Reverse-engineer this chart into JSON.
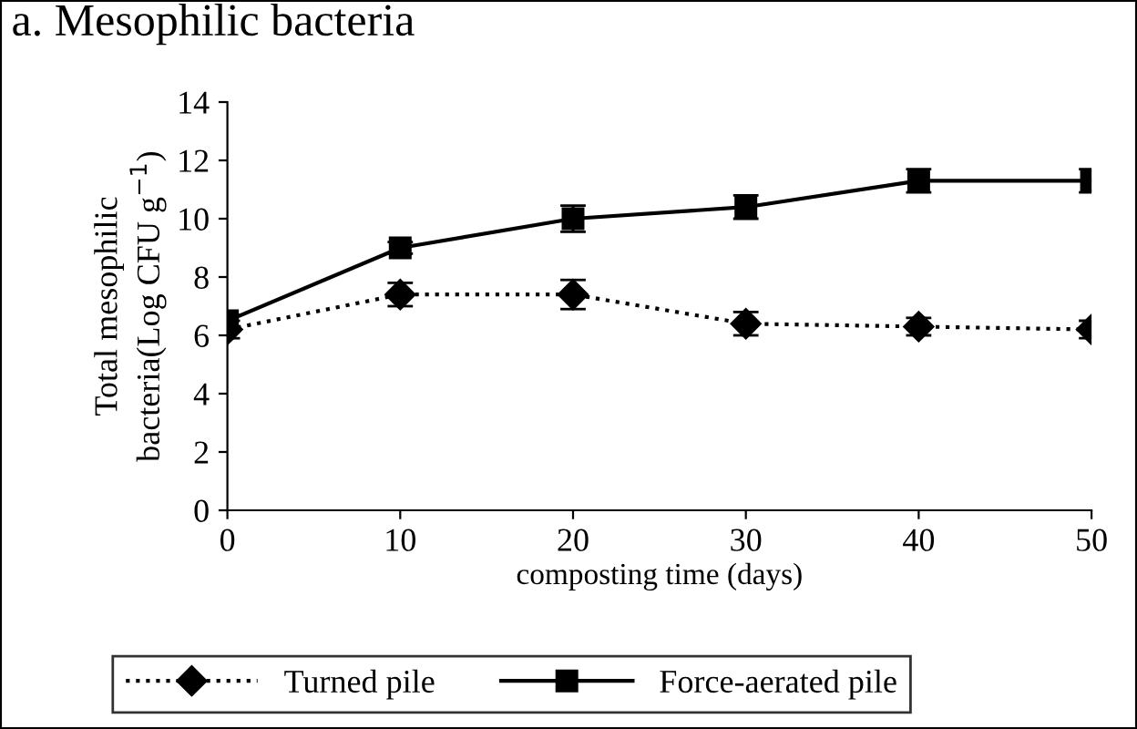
{
  "chart_data": {
    "type": "line",
    "title": "a. Mesophilic bacteria",
    "xlabel": "composting time (days)",
    "ylabel": "Total mesophilic\nbacteria(Log CFU g$^{−1}$)",
    "x": [
      0,
      10,
      20,
      30,
      40,
      50
    ],
    "xlim": [
      0,
      50
    ],
    "xticks": [
      0,
      10,
      20,
      30,
      40,
      50
    ],
    "ylim": [
      0,
      14
    ],
    "yticks": [
      0,
      2,
      4,
      6,
      8,
      10,
      12,
      14
    ],
    "grid": false,
    "legend": "bottom",
    "series": [
      {
        "name": "Turned pile",
        "color": "#000000",
        "marker": "diamond",
        "line_style": "dotted",
        "values": [
          6.2,
          7.4,
          7.4,
          6.4,
          6.3,
          6.2
        ],
        "errors": [
          0.3,
          0.4,
          0.5,
          0.4,
          0.3,
          0.3
        ]
      },
      {
        "name": "Force-aerated pile",
        "color": "#000000",
        "marker": "square",
        "line_style": "solid",
        "values": [
          6.5,
          9.0,
          10.0,
          10.4,
          11.3,
          11.3
        ],
        "errors": [
          0.2,
          0.2,
          0.45,
          0.4,
          0.4,
          0.4
        ]
      }
    ]
  }
}
